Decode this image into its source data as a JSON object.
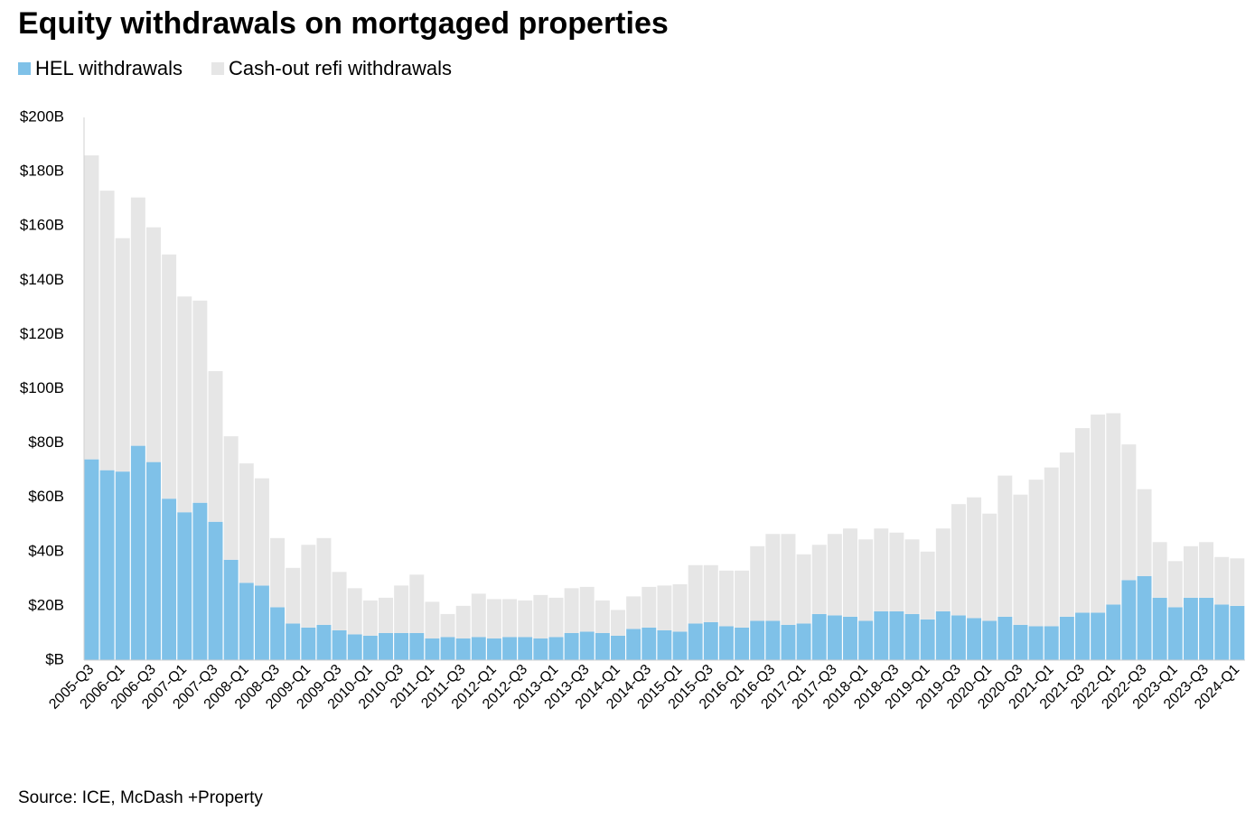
{
  "chart_data": {
    "type": "stacked_bar",
    "title": "Equity withdrawals on mortgaged properties",
    "source": "Source: ICE, McDash +Property",
    "legend": "upper left",
    "categories": [
      "2005-Q3",
      null,
      "2006-Q1",
      null,
      "2006-Q3",
      null,
      "2007-Q1",
      null,
      "2007-Q3",
      null,
      "2008-Q1",
      null,
      "2008-Q3",
      null,
      "2009-Q1",
      null,
      "2009-Q3",
      null,
      "2010-Q1",
      null,
      "2010-Q3",
      null,
      "2011-Q1",
      null,
      "2011-Q3",
      null,
      "2012-Q1",
      null,
      "2012-Q3",
      null,
      "2013-Q1",
      null,
      "2013-Q3",
      null,
      "2014-Q1",
      null,
      "2014-Q3",
      null,
      "2015-Q1",
      null,
      "2015-Q3",
      null,
      "2016-Q1",
      null,
      "2016-Q3",
      null,
      "2017-Q1",
      null,
      "2017-Q3",
      null,
      "2018-Q1",
      null,
      "2018-Q3",
      null,
      "2019-Q1",
      null,
      "2019-Q3",
      null,
      "2020-Q1",
      null,
      "2020-Q3",
      null,
      "2021-Q1",
      null,
      "2021-Q3",
      null,
      "2022-Q1",
      null,
      "2022-Q3",
      null,
      "2023-Q1",
      null,
      "2023-Q3",
      null,
      "2024-Q1"
    ],
    "series": [
      {
        "name": "HEL withdrawals",
        "color": "#7fc1e8",
        "values": [
          74,
          70,
          69.5,
          79,
          73,
          59.5,
          54.5,
          58,
          51,
          37,
          28.5,
          27.5,
          19.5,
          13.5,
          12,
          13,
          11,
          9.5,
          9,
          10,
          10,
          10,
          8,
          8.5,
          8,
          8.5,
          8,
          8.5,
          8.5,
          8,
          8.5,
          10,
          10.5,
          10,
          9,
          11.5,
          12,
          11,
          10.5,
          13.5,
          14,
          12.5,
          12,
          14.5,
          14.5,
          13,
          13.5,
          17,
          16.5,
          16,
          14.5,
          18,
          18,
          17,
          15,
          18,
          16.5,
          15.5,
          14.5,
          16,
          13,
          12.5,
          12.5,
          16,
          17.5,
          17.5,
          20.5,
          29.5,
          31,
          23,
          19.5,
          23,
          23,
          20.5,
          20
        ]
      },
      {
        "name": "Cash-out refi withdrawals",
        "color": "#e6e6e6",
        "values": [
          112,
          103,
          86,
          91.5,
          86.5,
          90,
          79.5,
          74.5,
          55.5,
          45.5,
          44,
          39.5,
          25.5,
          20.5,
          30.5,
          32,
          21.5,
          17,
          13,
          13,
          17.5,
          21.5,
          13.5,
          8.5,
          12,
          16,
          14.5,
          14,
          13.5,
          16,
          14.5,
          16.5,
          16.5,
          12,
          9.5,
          12,
          15,
          16.5,
          17.5,
          21.5,
          21,
          20.5,
          21,
          27.5,
          32,
          33.5,
          25.5,
          25.5,
          30,
          32.5,
          30,
          30.5,
          29,
          27.5,
          25,
          30.5,
          41,
          44.5,
          39.5,
          52,
          48,
          54,
          58.5,
          60.5,
          68,
          73,
          70.5,
          50,
          32,
          20.5,
          17,
          19,
          20.5,
          17.5,
          17.5
        ]
      }
    ],
    "ylim": [
      0,
      200
    ],
    "yticks": [
      {
        "value": 0,
        "label": "$B"
      },
      {
        "value": 20,
        "label": "$20B"
      },
      {
        "value": 40,
        "label": "$40B"
      },
      {
        "value": 60,
        "label": "$60B"
      },
      {
        "value": 80,
        "label": "$80B"
      },
      {
        "value": 100,
        "label": "$100B"
      },
      {
        "value": 120,
        "label": "$120B"
      },
      {
        "value": 140,
        "label": "$140B"
      },
      {
        "value": 160,
        "label": "$160B"
      },
      {
        "value": 180,
        "label": "$180B"
      },
      {
        "value": 200,
        "label": "$200B"
      }
    ],
    "grid": false
  }
}
